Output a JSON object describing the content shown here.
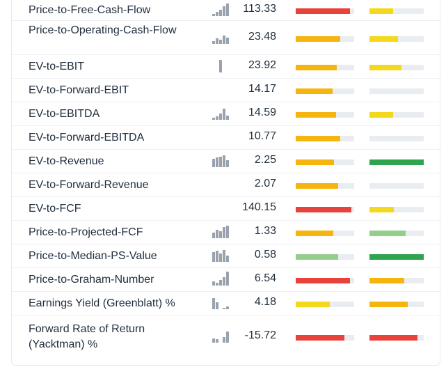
{
  "colors": {
    "red": "#e8423a",
    "orange": "#f6b40e",
    "yellow": "#f4d81e",
    "green": "#2ea44f",
    "light_green": "#93cf8a",
    "track": "#e9edf2"
  },
  "rows": [
    {
      "label": "Price-to-Free-Cash-Flow",
      "value": "113.33",
      "spark": [
        3,
        6,
        9,
        14,
        18
      ],
      "bar1": {
        "level": 0.93,
        "color": "red"
      },
      "bar2": {
        "level": 0.43,
        "color": "yellow"
      }
    },
    {
      "label": "Price-to-Operating-Cash-Flow",
      "value": "23.48",
      "spark": [
        4,
        8,
        6,
        12,
        9
      ],
      "bar1": {
        "level": 0.76,
        "color": "orange"
      },
      "bar2": {
        "level": 0.53,
        "color": "yellow"
      }
    },
    {
      "label": "EV-to-EBIT",
      "value": "23.92",
      "spark": [
        0,
        0,
        18,
        0,
        0
      ],
      "bar1": {
        "level": 0.7,
        "color": "orange"
      },
      "bar2": {
        "level": 0.59,
        "color": "yellow"
      }
    },
    {
      "label": "EV-to-Forward-EBIT",
      "value": "14.17",
      "spark": [],
      "bar1": {
        "level": 0.63,
        "color": "orange"
      },
      "bar2": {
        "level": 0.0,
        "color": "yellow"
      }
    },
    {
      "label": "EV-to-EBITDA",
      "value": "14.59",
      "spark": [
        3,
        5,
        9,
        16,
        6
      ],
      "bar1": {
        "level": 0.69,
        "color": "orange"
      },
      "bar2": {
        "level": 0.43,
        "color": "yellow"
      }
    },
    {
      "label": "EV-to-Forward-EBITDA",
      "value": "10.77",
      "spark": [],
      "bar1": {
        "level": 0.76,
        "color": "orange"
      },
      "bar2": {
        "level": 0.0,
        "color": "yellow"
      }
    },
    {
      "label": "EV-to-Revenue",
      "value": "2.25",
      "spark": [
        12,
        14,
        15,
        17,
        10
      ],
      "bar1": {
        "level": 0.66,
        "color": "orange"
      },
      "bar2": {
        "level": 1.0,
        "color": "green"
      }
    },
    {
      "label": "EV-to-Forward-Revenue",
      "value": "2.07",
      "spark": [],
      "bar1": {
        "level": 0.73,
        "color": "orange"
      },
      "bar2": {
        "level": 0.0,
        "color": "green"
      }
    },
    {
      "label": "EV-to-FCF",
      "value": "140.15",
      "spark": [],
      "bar1": {
        "level": 0.95,
        "color": "red"
      },
      "bar2": {
        "level": 0.45,
        "color": "yellow"
      }
    },
    {
      "label": "Price-to-Projected-FCF",
      "value": "1.33",
      "spark": [
        8,
        12,
        10,
        16,
        18
      ],
      "bar1": {
        "level": 0.64,
        "color": "orange"
      },
      "bar2": {
        "level": 0.67,
        "color": "light_green"
      }
    },
    {
      "label": "Price-to-Median-PS-Value",
      "value": "0.58",
      "spark": [
        14,
        16,
        12,
        17,
        9
      ],
      "bar1": {
        "level": 0.73,
        "color": "light_green"
      },
      "bar2": {
        "level": 1.0,
        "color": "green"
      }
    },
    {
      "label": "Price-to-Graham-Number",
      "value": "6.54",
      "spark": [
        6,
        4,
        8,
        12,
        20
      ],
      "bar1": {
        "level": 0.93,
        "color": "red"
      },
      "bar2": {
        "level": 0.64,
        "color": "orange"
      }
    },
    {
      "label": "Earnings Yield (Greenblatt) %",
      "value": "4.18",
      "spark": [
        16,
        10,
        0,
        2,
        4
      ],
      "bar1": {
        "level": 0.58,
        "color": "yellow"
      },
      "bar2": {
        "level": 0.7,
        "color": "orange"
      }
    },
    {
      "label": "Forward Rate of Return (Yacktman) %",
      "value": "-15.72",
      "spark": [
        6,
        5,
        0,
        8,
        16
      ],
      "bar1": {
        "level": 0.83,
        "color": "red"
      },
      "bar2": {
        "level": 0.88,
        "color": "red"
      }
    }
  ]
}
